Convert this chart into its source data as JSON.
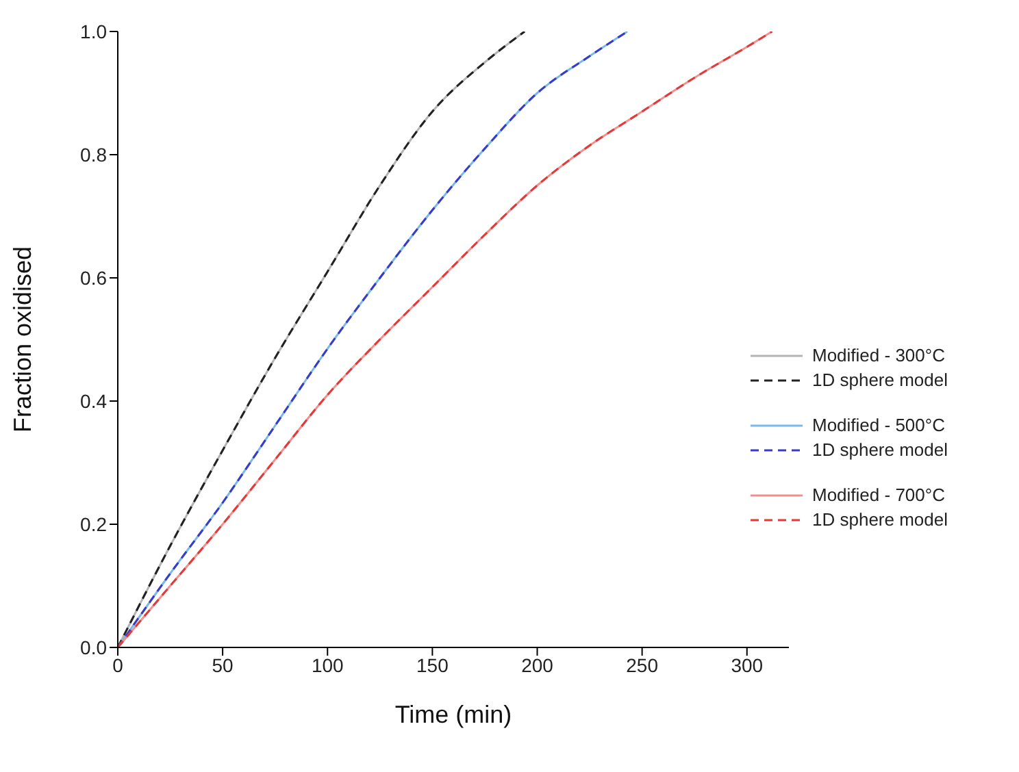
{
  "chart_data": {
    "type": "line",
    "xlabel": "Time (min)",
    "ylabel": "Fraction oxidised",
    "xlim": [
      0,
      320
    ],
    "xticks": [
      0,
      50,
      100,
      150,
      200,
      250,
      300
    ],
    "ylim": [
      0,
      1
    ],
    "yticks": [
      {
        "value": 0,
        "label": "0.0"
      },
      0.2,
      0.4,
      0.6,
      0.8,
      {
        "value": 1,
        "label": "1.0"
      }
    ],
    "grid": false,
    "legend": "right",
    "marker": "none",
    "series": [
      {
        "name": "Modified - 300°C",
        "color": "#b4b4b4",
        "line_style": "solid",
        "x": [
          0,
          25,
          50,
          75,
          100,
          125,
          150,
          175,
          194
        ],
        "values": [
          0,
          0.165,
          0.32,
          0.47,
          0.61,
          0.75,
          0.87,
          0.95,
          1.0
        ]
      },
      {
        "name": "1D sphere model",
        "color": "#222222",
        "line_style": "dashed",
        "x": [
          0,
          25,
          50,
          75,
          100,
          125,
          150,
          175,
          194
        ],
        "values": [
          0,
          0.165,
          0.32,
          0.47,
          0.61,
          0.75,
          0.87,
          0.95,
          1.0
        ]
      },
      {
        "name": "Modified - 500°C",
        "color": "#7ab8ea",
        "line_style": "solid",
        "x": [
          0,
          25,
          50,
          75,
          100,
          125,
          150,
          175,
          200,
          225,
          243
        ],
        "values": [
          0,
          0.12,
          0.235,
          0.36,
          0.485,
          0.6,
          0.71,
          0.81,
          0.9,
          0.96,
          1.0
        ]
      },
      {
        "name": "1D sphere model",
        "color": "#3a3ac8",
        "line_style": "dashed",
        "x": [
          0,
          25,
          50,
          75,
          100,
          125,
          150,
          175,
          200,
          225,
          243
        ],
        "values": [
          0,
          0.12,
          0.235,
          0.36,
          0.485,
          0.6,
          0.71,
          0.81,
          0.9,
          0.96,
          1.0
        ]
      },
      {
        "name": "Modified - 700°C",
        "color": "#f29090",
        "line_style": "solid",
        "x": [
          0,
          25,
          50,
          75,
          100,
          125,
          150,
          175,
          200,
          225,
          250,
          275,
          300,
          312
        ],
        "values": [
          0,
          0.1,
          0.2,
          0.305,
          0.41,
          0.5,
          0.585,
          0.67,
          0.75,
          0.815,
          0.87,
          0.925,
          0.975,
          1.0
        ]
      },
      {
        "name": "1D sphere model",
        "color": "#e03a3a",
        "line_style": "dashed",
        "x": [
          0,
          25,
          50,
          75,
          100,
          125,
          150,
          175,
          200,
          225,
          250,
          275,
          300,
          312
        ],
        "values": [
          0,
          0.1,
          0.2,
          0.305,
          0.41,
          0.5,
          0.585,
          0.67,
          0.75,
          0.815,
          0.87,
          0.925,
          0.975,
          1.0
        ]
      }
    ]
  }
}
